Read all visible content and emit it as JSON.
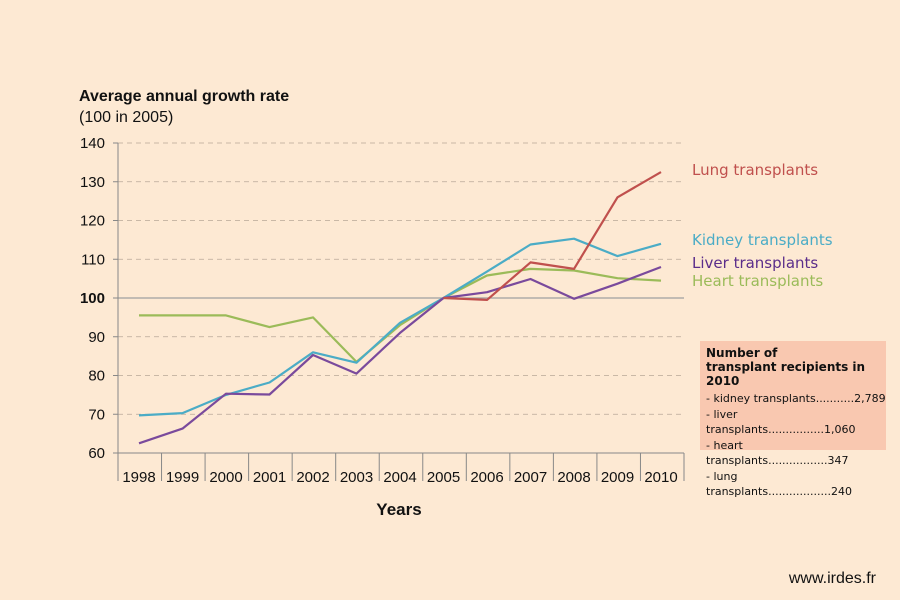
{
  "chart_data": {
    "type": "line",
    "ylabel_bold": "Average annual growth rate",
    "ylabel_rest": "(100 in 2005)",
    "xlabel": "Years",
    "ylim": [
      60,
      140
    ],
    "yticks": [
      60,
      70,
      80,
      90,
      100,
      110,
      120,
      130,
      140
    ],
    "reference_line": 100,
    "grid": "dashed horizontal",
    "categories": [
      "1998",
      "1999",
      "2000",
      "2001",
      "2002",
      "2003",
      "2004",
      "2005",
      "2006",
      "2007",
      "2008",
      "2009",
      "2010"
    ],
    "series": [
      {
        "name": "Lung transplants",
        "color": "#c0504d",
        "values": [
          null,
          null,
          null,
          null,
          null,
          null,
          null,
          100,
          99.5,
          109.2,
          107.5,
          126,
          132.5
        ]
      },
      {
        "name": "Kidney transplants",
        "color": "#4bacc6",
        "values": [
          69.7,
          70.3,
          75,
          78.2,
          86,
          83.3,
          93.6,
          100,
          106.8,
          113.8,
          115.3,
          110.8,
          114
        ]
      },
      {
        "name": "Liver transplants",
        "color": "#7a4a9c",
        "values": [
          62.5,
          66.3,
          75.3,
          75.1,
          85.3,
          80.5,
          91,
          100,
          101.5,
          104.9,
          99.8,
          103.7,
          108
        ]
      },
      {
        "name": "Heart transplants",
        "color": "#9bbb59",
        "values": [
          95.5,
          95.5,
          95.5,
          92.5,
          95,
          83.5,
          93,
          100,
          105.8,
          107.5,
          107.1,
          105.1,
          104.5
        ]
      }
    ],
    "label_colors": {
      "Lung transplants": "#c0504d",
      "Kidney transplants": "#4bacc6",
      "Liver transplants": "#5b2d8a",
      "Heart transplants": "#9bbb59"
    }
  },
  "infobox": {
    "title_line1": "Number of",
    "title_line2": "transplant recipients in 2010",
    "rows": [
      "- kidney transplants...........2,789",
      "- liver transplants................1,060",
      "- heart transplants.................347",
      "- lung transplants..................240"
    ]
  },
  "footer": "www.irdes.fr"
}
